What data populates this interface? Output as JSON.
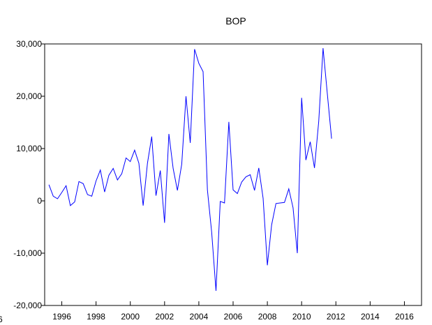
{
  "chart_data": {
    "type": "line",
    "title": "BOP",
    "x": [
      1995.25,
      1995.5,
      1995.75,
      1996,
      1996.25,
      1996.5,
      1996.75,
      1997,
      1997.25,
      1997.5,
      1997.75,
      1998,
      1998.25,
      1998.5,
      1998.75,
      1999,
      1999.25,
      1999.5,
      1999.75,
      2000,
      2000.25,
      2000.5,
      2000.75,
      2001,
      2001.25,
      2001.5,
      2001.75,
      2002,
      2002.25,
      2002.5,
      2002.75,
      2003,
      2003.25,
      2003.5,
      2003.75,
      2004,
      2004.25,
      2004.5,
      2004.75,
      2005,
      2005.25,
      2005.5,
      2005.75,
      2006,
      2006.25,
      2006.5,
      2006.75,
      2007,
      2007.25,
      2007.5,
      2007.75,
      2008,
      2008.25,
      2008.5,
      2008.75,
      2009,
      2009.25,
      2009.5,
      2009.75,
      2010,
      2010.25,
      2010.5,
      2010.75,
      2011,
      2011.25,
      2011.5,
      2011.75,
      2012,
      2012.25
    ],
    "series": [
      {
        "name": "BOP",
        "color": "#0000ff",
        "values": [
          3100,
          900,
          400,
          1600,
          2900,
          -900,
          -200,
          3700,
          3300,
          1200,
          900,
          3800,
          5900,
          1700,
          4900,
          6200,
          4000,
          5200,
          8200,
          7500,
          9700,
          7200,
          -900,
          7200,
          12300,
          1000,
          5800,
          -4200,
          12800,
          6200,
          2000,
          7000,
          20000,
          11100,
          29000,
          26300,
          24700,
          2100,
          -6000,
          -17200,
          -100,
          -400,
          15100,
          2100,
          1400,
          3600,
          4600,
          5000,
          2000,
          6300,
          500,
          -12300,
          -4600,
          -500,
          -400,
          -300,
          2300,
          -1300,
          -10000,
          19700,
          7800,
          11300,
          6300,
          15200,
          29200,
          20500,
          11900,
          null,
          null
        ]
      }
    ],
    "xlim": [
      1995,
      2017
    ],
    "xticks": [
      1996,
      1998,
      2000,
      2002,
      2004,
      2006,
      2008,
      2010,
      2012,
      2014,
      2016
    ],
    "ylim": [
      -20000,
      30000
    ],
    "yticks": [
      {
        "value": -20000,
        "label": "-20,000"
      },
      {
        "value": -10000,
        "label": "-10,000"
      },
      0,
      {
        "value": 10000,
        "label": "10,000"
      },
      {
        "value": 20000,
        "label": "20,000"
      },
      {
        "value": 30000,
        "label": "30,000"
      }
    ],
    "clipped_label": "6",
    "grid": false
  }
}
